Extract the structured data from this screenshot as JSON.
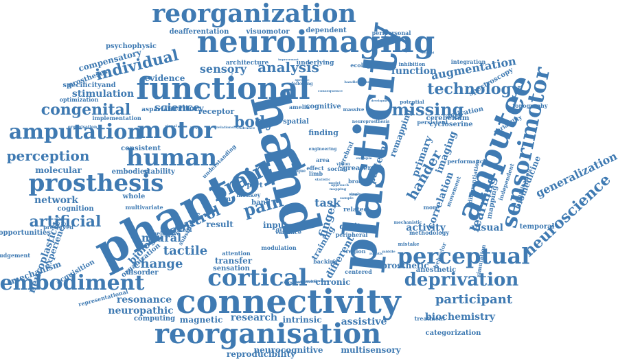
{
  "cloud": {
    "color": "#3f7ab2",
    "words": [
      {
        "text": "phantom",
        "rot": -27
      },
      {
        "text": "hand",
        "rot": 76
      },
      {
        "text": "plasticity",
        "rot": -84
      },
      {
        "text": "amputee",
        "rot": -68
      },
      {
        "text": "connectivity",
        "rot": 0
      },
      {
        "text": "neuroimaging",
        "rot": 0
      },
      {
        "text": "functional",
        "rot": 0
      },
      {
        "text": "reorganization",
        "rot": 0
      },
      {
        "text": "reorganisation",
        "rot": 0
      },
      {
        "text": "cortical",
        "rot": 0
      },
      {
        "text": "prosthesis",
        "rot": 0
      },
      {
        "text": "amputation",
        "rot": 0
      },
      {
        "text": "embodiment",
        "rot": 0
      },
      {
        "text": "motor",
        "rot": 0
      },
      {
        "text": "human",
        "rot": 0
      },
      {
        "text": "perceptual",
        "rot": 0
      },
      {
        "text": "deprivation",
        "rot": 0
      },
      {
        "text": "sensorimotor",
        "rot": -78
      },
      {
        "text": "brain",
        "rot": -28
      },
      {
        "text": "pain",
        "rot": -16
      },
      {
        "text": "body",
        "rot": 0
      },
      {
        "text": "missing",
        "rot": 0
      },
      {
        "text": "technology",
        "rot": 0
      },
      {
        "text": "congenital",
        "rot": 0
      },
      {
        "text": "neuroscience",
        "rot": -43
      },
      {
        "text": "control",
        "rot": -24
      },
      {
        "text": "artificial",
        "rot": 0
      },
      {
        "text": "science",
        "rot": 0
      },
      {
        "text": "individual",
        "rot": -14
      },
      {
        "text": "perception",
        "rot": 0
      },
      {
        "text": "participant",
        "rot": 0
      },
      {
        "text": "analysis",
        "rot": 0
      },
      {
        "text": "sensory",
        "rot": 0
      },
      {
        "text": "stimulation",
        "rot": 0
      },
      {
        "text": "hander",
        "rot": -60
      },
      {
        "text": "learning",
        "rot": -72
      },
      {
        "text": "finger",
        "rot": -72
      },
      {
        "text": "neural",
        "rot": 0
      },
      {
        "text": "change",
        "rot": 0
      },
      {
        "text": "tactile",
        "rot": 0
      },
      {
        "text": "biology",
        "rot": -47
      },
      {
        "text": "visual",
        "rot": 0
      },
      {
        "text": "generalization",
        "rot": -26
      },
      {
        "text": "augmentation",
        "rot": -10
      },
      {
        "text": "biochemistry",
        "rot": 0
      },
      {
        "text": "resonance",
        "rot": 0
      },
      {
        "text": "neuropathic",
        "rot": 0
      },
      {
        "text": "magnetic",
        "rot": 0
      },
      {
        "text": "research",
        "rot": 0
      },
      {
        "text": "intrinsic",
        "rot": 0
      },
      {
        "text": "chronic",
        "rot": 0
      },
      {
        "text": "prosthetic",
        "rot": 0
      },
      {
        "text": "correlation",
        "rot": -70
      },
      {
        "text": "biomedicine",
        "rot": -68
      },
      {
        "text": "primary",
        "rot": -70
      },
      {
        "text": "pattern",
        "rot": -70
      },
      {
        "text": "imaging",
        "rot": -70
      },
      {
        "text": "activity",
        "rot": 0
      },
      {
        "text": "network",
        "rot": 0
      },
      {
        "text": "molecular",
        "rot": 0
      },
      {
        "text": "embodied",
        "rot": 0
      },
      {
        "text": "stability",
        "rot": 0
      },
      {
        "text": "consistent",
        "rot": 0
      },
      {
        "text": "psychophysic",
        "rot": 0
      },
      {
        "text": "compensatory",
        "rot": -15
      },
      {
        "text": "deafferentation",
        "rot": 0
      },
      {
        "text": "visuomotor",
        "rot": 0
      },
      {
        "text": "dependent",
        "rot": 0
      },
      {
        "text": "peripersonal",
        "rot": 0
      },
      {
        "text": "architecture",
        "rot": 0
      },
      {
        "text": "underlying",
        "rot": 0
      },
      {
        "text": "ecological",
        "rot": 0
      },
      {
        "text": "evidence",
        "rot": 0
      },
      {
        "text": "territory",
        "rot": 0
      },
      {
        "text": "receptor",
        "rot": 0
      },
      {
        "text": "function",
        "rot": 0
      },
      {
        "text": "integration",
        "rot": 0
      },
      {
        "text": "spectroscopy",
        "rot": -30
      },
      {
        "text": "cerebellum",
        "rot": 0
      },
      {
        "text": "activation",
        "rot": -12
      },
      {
        "text": "cycloserine",
        "rot": 0
      },
      {
        "text": "persistent",
        "rot": 0
      },
      {
        "text": "task",
        "rot": 0
      },
      {
        "text": "digit",
        "rot": 0
      },
      {
        "text": "input",
        "rot": 0
      },
      {
        "text": "result",
        "rot": 0
      },
      {
        "text": "transfer",
        "rot": 0
      },
      {
        "text": "sensation",
        "rot": 0
      },
      {
        "text": "different",
        "rot": -60
      },
      {
        "text": "training",
        "rot": -60
      },
      {
        "text": "specificityand",
        "rot": 0
      },
      {
        "text": "prostheses",
        "rot": -20
      },
      {
        "text": "optimization",
        "rot": 0
      },
      {
        "text": "implementation",
        "rot": 0
      },
      {
        "text": "organisation",
        "rot": 0
      },
      {
        "text": "aspartate",
        "rot": 0
      },
      {
        "text": "cognitive",
        "rot": 0
      },
      {
        "text": "finding",
        "rot": 0
      },
      {
        "text": "spatial",
        "rot": 0
      },
      {
        "text": "massive",
        "rot": 0
      },
      {
        "text": "potential",
        "rot": 0
      },
      {
        "text": "inhibition",
        "rot": 0
      },
      {
        "text": "topography",
        "rot": 0
      },
      {
        "text": "performance",
        "rot": 0
      },
      {
        "text": "variability",
        "rot": -30
      },
      {
        "text": "differentiation",
        "rot": -80
      },
      {
        "text": "mapping",
        "rot": -80
      },
      {
        "text": "independent",
        "rot": -72
      },
      {
        "text": "implication",
        "rot": -70
      },
      {
        "text": "remapping",
        "rot": -70
      },
      {
        "text": "cerebral",
        "rot": -65
      },
      {
        "text": "vision",
        "rot": 0
      },
      {
        "text": "greater",
        "rot": 0
      },
      {
        "text": "social",
        "rot": 0
      },
      {
        "text": "broad",
        "rot": 0
      },
      {
        "text": "more",
        "rot": 0
      },
      {
        "text": "movement",
        "rot": -70
      },
      {
        "text": "behavior",
        "rot": -70
      },
      {
        "text": "temporal",
        "rot": 0
      },
      {
        "text": "methodology",
        "rot": 0
      },
      {
        "text": "mechanistic",
        "rot": 0
      },
      {
        "text": "mistake",
        "rot": 0
      },
      {
        "text": "peripheral",
        "rot": 0
      },
      {
        "text": "related",
        "rot": 0
      },
      {
        "text": "group",
        "rot": 0
      },
      {
        "text": "arm",
        "rot": 0
      },
      {
        "text": "part",
        "rot": 0
      },
      {
        "text": "band",
        "rot": 0
      },
      {
        "text": "effect",
        "rot": 0
      },
      {
        "text": "limb",
        "rot": 0
      },
      {
        "text": "area",
        "rot": 0
      },
      {
        "text": "whole",
        "rot": 0
      },
      {
        "text": "cognition",
        "rot": 0
      },
      {
        "text": "multivariate",
        "rot": 0
      },
      {
        "text": "preserved",
        "rot": 0
      },
      {
        "text": "opportunities",
        "rot": 0
      },
      {
        "text": "judgement",
        "rot": 0
      },
      {
        "text": "experience",
        "rot": -70
      },
      {
        "text": "neuroplasticity",
        "rot": -70
      },
      {
        "text": "organization",
        "rot": -40
      },
      {
        "text": "mechanism",
        "rot": -20
      },
      {
        "text": "acquisition",
        "rot": -30
      },
      {
        "text": "understanding",
        "rot": -45
      },
      {
        "text": "substitution",
        "rot": -60
      },
      {
        "text": "system",
        "rot": 0
      },
      {
        "text": "selective",
        "rot": 0
      },
      {
        "text": "disorder",
        "rot": 0
      },
      {
        "text": "attention",
        "rot": 0
      },
      {
        "text": "modulation",
        "rot": 0
      },
      {
        "text": "variance",
        "rot": 0
      },
      {
        "text": "region",
        "rot": 0
      },
      {
        "text": "space",
        "rot": 0
      },
      {
        "text": "backing",
        "rot": 0
      },
      {
        "text": "centered",
        "rot": 0
      },
      {
        "text": "assistive",
        "rot": 0
      },
      {
        "text": "anesthetic",
        "rot": 0
      },
      {
        "text": "simulation",
        "rot": -80
      },
      {
        "text": "treatment",
        "rot": 0
      },
      {
        "text": "categorization",
        "rot": 0
      },
      {
        "text": "computing",
        "rot": 0
      },
      {
        "text": "representational",
        "rot": -15
      },
      {
        "text": "reproducibility",
        "rot": 0
      },
      {
        "text": "neurocognitive",
        "rot": 0
      },
      {
        "text": "multisensory",
        "rot": 0
      },
      {
        "text": "engineering",
        "rot": 0
      },
      {
        "text": "neuroprosthesis",
        "rot": 0
      },
      {
        "text": "amelia",
        "rot": 0
      },
      {
        "text": "monkey",
        "rot": 0
      },
      {
        "text": "macaque",
        "rot": 0
      },
      {
        "text": "signal",
        "rot": 0
      },
      {
        "text": "map",
        "rot": 0
      },
      {
        "text": "relationship",
        "rot": 0
      },
      {
        "text": "advance",
        "rot": 0
      },
      {
        "text": "following",
        "rot": 0
      },
      {
        "text": "specific",
        "rot": 0
      },
      {
        "text": "consequence",
        "rot": 0
      },
      {
        "text": "conceptual",
        "rot": 0
      },
      {
        "text": "adaptive",
        "rot": -70
      },
      {
        "text": "detailed",
        "rot": 0
      },
      {
        "text": "improvement",
        "rot": 0
      },
      {
        "text": "handlessness",
        "rot": 0
      },
      {
        "text": "development",
        "rot": 0
      },
      {
        "text": "metaplastic",
        "rot": 0
      },
      {
        "text": "correlated",
        "rot": 0
      },
      {
        "text": "contribution",
        "rot": 0
      },
      {
        "text": "statistic",
        "rot": 0
      },
      {
        "text": "example",
        "rot": 0
      },
      {
        "text": "injuries",
        "rot": 0
      },
      {
        "text": "time",
        "rot": 0
      },
      {
        "text": "robotic",
        "rot": 0
      },
      {
        "text": "middle",
        "rot": 0
      },
      {
        "text": "model",
        "rot": 0
      },
      {
        "text": "single",
        "rot": 0
      },
      {
        "text": "sample",
        "rot": 0
      },
      {
        "text": "approach",
        "rot": 0
      },
      {
        "text": "mapping",
        "rot": 0
      },
      {
        "text": "tool",
        "rot": 0
      },
      {
        "text": "foot",
        "rot": 0
      }
    ]
  }
}
